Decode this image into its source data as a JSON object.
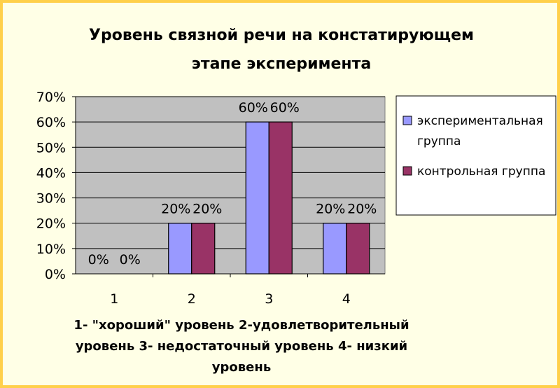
{
  "chart_data": {
    "type": "bar",
    "title_lines": [
      "Уровень связной речи на констатирующем",
      "этапе эксперимента"
    ],
    "categories": [
      "1",
      "2",
      "3",
      "4"
    ],
    "series": [
      {
        "name": "экспериментальная группа",
        "name_lines": [
          "экспериментальная",
          "группа"
        ],
        "values": [
          0,
          20,
          60,
          20
        ],
        "labels": [
          "0%",
          "20%",
          "60%",
          "20%"
        ],
        "color": "#9999ff"
      },
      {
        "name": "контрольная группа",
        "name_lines": [
          "контрольная группа"
        ],
        "values": [
          0,
          20,
          60,
          20
        ],
        "labels": [
          "0%",
          "20%",
          "60%",
          "20%"
        ],
        "color": "#993366"
      }
    ],
    "ylim": [
      0,
      70
    ],
    "y_ticks": [
      "0%",
      "10%",
      "20%",
      "30%",
      "40%",
      "50%",
      "60%",
      "70%"
    ],
    "grid": true,
    "legend_position": "right",
    "xlabel_lines": [
      "1- \"хороший\" уровень 2-удовлетворительный",
      "уровень 3- недостаточный уровень 4- низкий",
      "уровень"
    ],
    "colors": {
      "plot_bg": "#c0c0c0",
      "frame_border": "#ffd04a",
      "frame_bg": "#ffffe6"
    }
  }
}
